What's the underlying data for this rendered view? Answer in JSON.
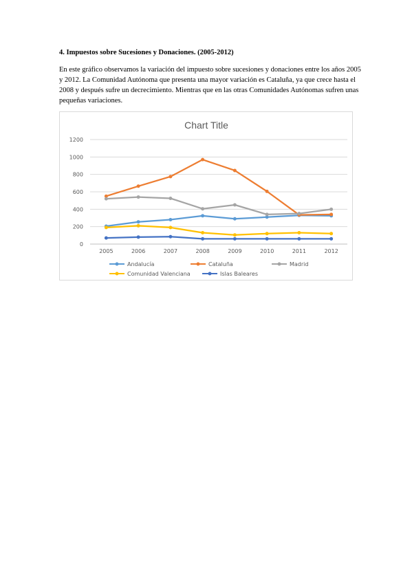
{
  "document": {
    "heading": "4. Impuestos sobre Sucesiones y Donaciones. (2005-2012)",
    "paragraph": "En este gráfico observamos la variación del impuesto sobre sucesiones y donaciones entre los años 2005 y 2012. La Comunidad Autónoma  que presenta una mayor variación es Cataluña, ya que crece hasta el 2008 y después sufre un decrecimiento. Mientras que en las otras Comunidades Autónomas sufren unas pequeñas variaciones."
  },
  "chart_data": {
    "type": "line",
    "title": "Chart Title",
    "xlabel": "",
    "ylabel": "",
    "categories": [
      "2005",
      "2006",
      "2007",
      "2008",
      "2009",
      "2010",
      "2011",
      "2012"
    ],
    "ylim": [
      0,
      1200
    ],
    "yticks": [
      0,
      200,
      400,
      600,
      800,
      1000,
      1200
    ],
    "grid": true,
    "legend_position": "bottom",
    "series": [
      {
        "name": "Andalucía",
        "color": "#5b9bd5",
        "values": [
          205,
          255,
          280,
          325,
          290,
          310,
          330,
          325
        ]
      },
      {
        "name": "Cataluña",
        "color": "#ed7d31",
        "values": [
          550,
          665,
          775,
          970,
          845,
          605,
          335,
          340
        ]
      },
      {
        "name": "Madrid",
        "color": "#a5a5a5",
        "values": [
          520,
          540,
          525,
          405,
          450,
          340,
          350,
          400
        ]
      },
      {
        "name": "Comunidad Valenciana",
        "color": "#ffc000",
        "values": [
          190,
          210,
          190,
          130,
          105,
          120,
          130,
          120
        ]
      },
      {
        "name": "Islas Baleares",
        "color": "#4472c4",
        "values": [
          70,
          80,
          85,
          60,
          60,
          60,
          60,
          60
        ]
      }
    ]
  }
}
